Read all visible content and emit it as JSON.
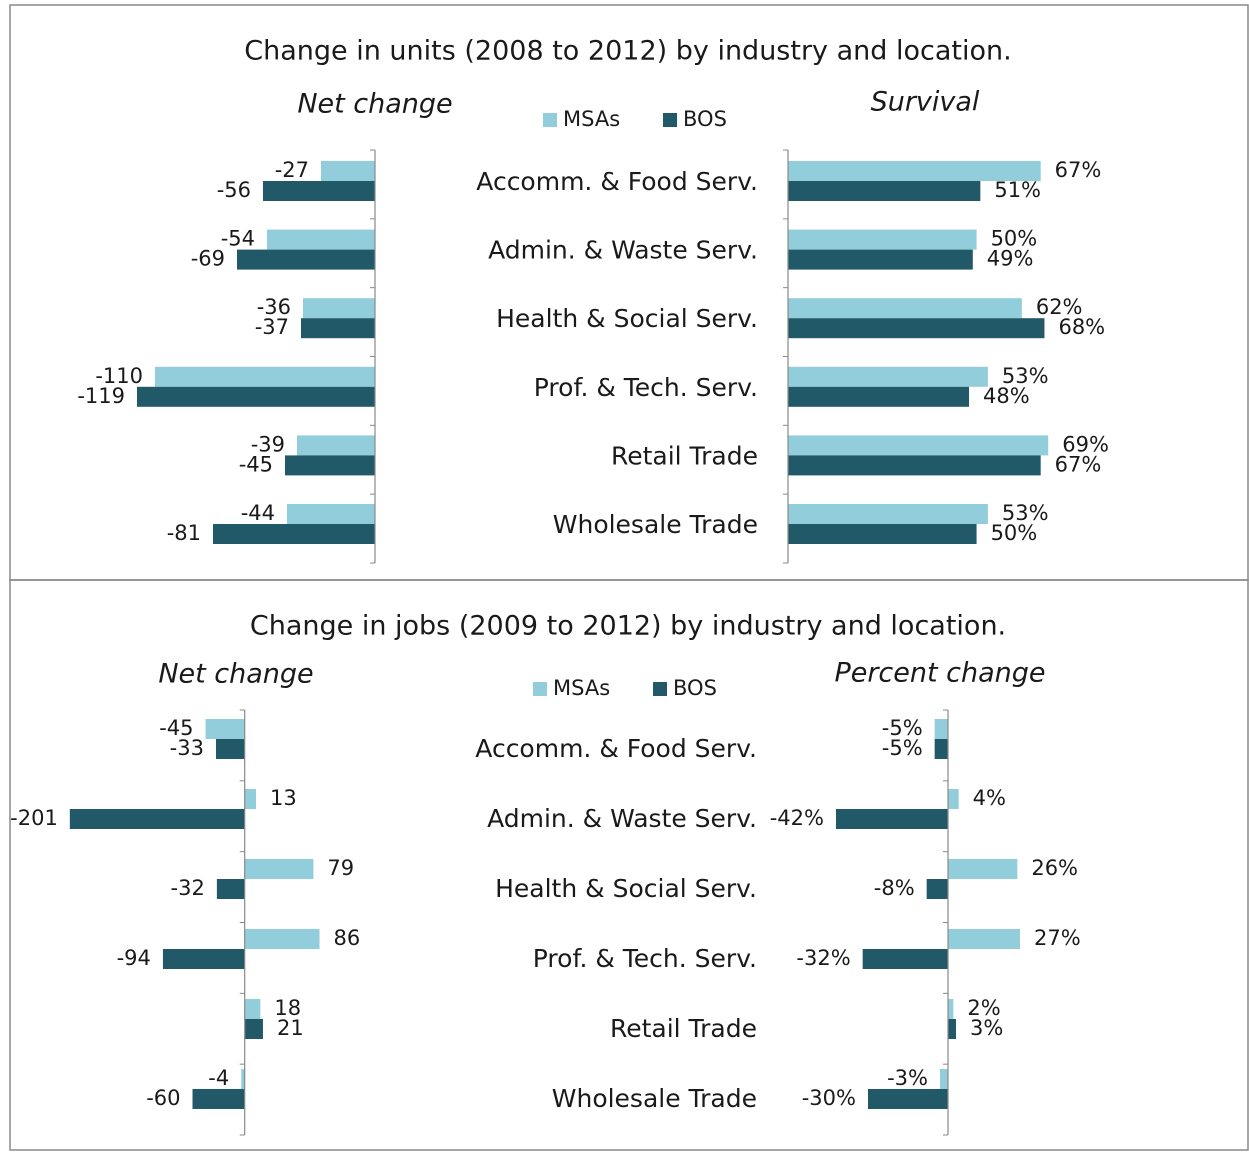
{
  "chart_data": [
    {
      "type": "bar",
      "orientation": "horizontal",
      "title": "Change in units (2008 to 2012) by industry and location.",
      "categories": [
        "Accomm. & Food Serv.",
        "Admin. & Waste Serv.",
        "Health & Social Serv.",
        "Prof. & Tech. Serv.",
        "Retail Trade",
        "Wholesale Trade"
      ],
      "panels": [
        {
          "subtitle": "Net change",
          "xlim": [
            -120,
            0
          ],
          "series": [
            {
              "name": "MSAs",
              "color": "#92cddc",
              "values": [
                -27,
                -54,
                -36,
                -110,
                -39,
                -44
              ]
            },
            {
              "name": "BOS",
              "color": "#215968",
              "values": [
                -56,
                -69,
                -37,
                -119,
                -45,
                -81
              ]
            }
          ]
        },
        {
          "subtitle": "Survival",
          "xlim": [
            0,
            70
          ],
          "series": [
            {
              "name": "MSAs",
              "color": "#92cddc",
              "values": [
                67,
                50,
                62,
                53,
                69,
                53
              ],
              "value_labels": [
                "67%",
                "50%",
                "62%",
                "53%",
                "69%",
                "53%"
              ]
            },
            {
              "name": "BOS",
              "color": "#215968",
              "values": [
                51,
                49,
                68,
                48,
                67,
                50
              ],
              "value_labels": [
                "51%",
                "49%",
                "68%",
                "48%",
                "67%",
                "50%"
              ]
            }
          ]
        }
      ]
    },
    {
      "type": "bar",
      "orientation": "horizontal",
      "title": "Change in jobs (2009 to 2012) by industry and location.",
      "categories": [
        "Accomm. & Food Serv.",
        "Admin. & Waste Serv.",
        "Health & Social Serv.",
        "Prof. & Tech. Serv.",
        "Retail Trade",
        "Wholesale Trade"
      ],
      "panels": [
        {
          "subtitle": "Net change",
          "xlim": [
            -210,
            90
          ],
          "series": [
            {
              "name": "MSAs",
              "color": "#92cddc",
              "values": [
                -45,
                13,
                79,
                86,
                18,
                -4
              ]
            },
            {
              "name": "BOS",
              "color": "#215968",
              "values": [
                -33,
                -201,
                -32,
                -94,
                21,
                -60
              ]
            }
          ]
        },
        {
          "subtitle": "Percent change",
          "xlim": [
            -45,
            30
          ],
          "series": [
            {
              "name": "MSAs",
              "color": "#92cddc",
              "values": [
                -5,
                4,
                26,
                27,
                2,
                -3
              ],
              "value_labels": [
                "-5%",
                "4%",
                "26%",
                "27%",
                "2%",
                "-3%"
              ]
            },
            {
              "name": "BOS",
              "color": "#215968",
              "values": [
                -5,
                -42,
                -8,
                -32,
                3,
                -30
              ],
              "value_labels": [
                "-5%",
                "-42%",
                "-8%",
                "-32%",
                "3%",
                "-30%"
              ]
            }
          ]
        }
      ]
    }
  ]
}
